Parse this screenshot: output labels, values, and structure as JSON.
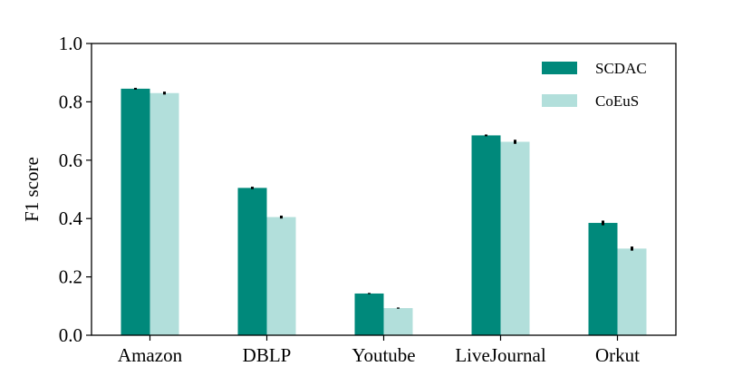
{
  "chart_data": {
    "type": "bar",
    "title": "",
    "xlabel": "",
    "ylabel": "F1 score",
    "ylim": [
      0.0,
      1.0
    ],
    "yticks": [
      "0.0",
      "0.2",
      "0.4",
      "0.6",
      "0.8",
      "1.0"
    ],
    "categories": [
      "Amazon",
      "DBLP",
      "Youtube",
      "LiveJournal",
      "Orkut"
    ],
    "series": [
      {
        "name": "SCDAC",
        "color": "#00897b",
        "values": [
          0.845,
          0.505,
          0.143,
          0.685,
          0.385
        ],
        "errors": [
          0.003,
          0.004,
          0.002,
          0.003,
          0.008
        ]
      },
      {
        "name": "CoEuS",
        "color": "#b2dfdb",
        "values": [
          0.83,
          0.405,
          0.093,
          0.663,
          0.297
        ],
        "errors": [
          0.005,
          0.005,
          0.002,
          0.007,
          0.007
        ]
      }
    ],
    "grid": false,
    "legend_position": "top-right",
    "error_bars": true
  }
}
